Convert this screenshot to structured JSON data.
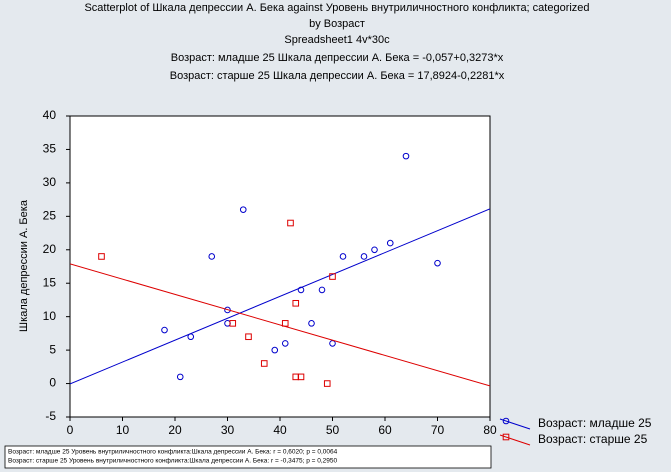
{
  "chart_data": {
    "type": "scatter",
    "title": [
      "Scatterplot of Шкала депрессии А. Бека against Уровень внутриличностного конфликта; categorized",
      "by Возраст"
    ],
    "subtitles": [
      "Spreadsheet1 4v*30c",
      "Возраст: младше 25 Шкала депрессии А. Бека = -0,057+0,3273*x",
      "Возраст: старше 25 Шкала депрессии А. Бека = 17,8924-0,2281*x"
    ],
    "y_label": "Шкала депрессии А. Бека",
    "xlim": [
      0,
      80
    ],
    "xticks": [
      0,
      10,
      20,
      30,
      40,
      50,
      60,
      70,
      80
    ],
    "ylim": [
      -5,
      40
    ],
    "yticks": [
      -5,
      0,
      5,
      10,
      15,
      20,
      25,
      30,
      35,
      40
    ],
    "legend": "right",
    "series": [
      {
        "name": "Возраст: младше 25",
        "color": "#0000cc",
        "marker": "circle",
        "fit": {
          "intercept": -0.057,
          "slope": 0.3273
        },
        "x": [
          18,
          21,
          23,
          27,
          30,
          30,
          33,
          39,
          41,
          44,
          46,
          48,
          50,
          52,
          56,
          58,
          61,
          64,
          70
        ],
        "values": [
          8,
          1,
          7,
          19,
          11,
          9,
          26,
          5,
          6,
          14,
          9,
          14,
          6,
          19,
          19,
          20,
          21,
          34,
          18
        ]
      },
      {
        "name": "Возраст: старше 25",
        "color": "#dd0000",
        "marker": "square",
        "fit": {
          "intercept": 17.8924,
          "slope": -0.2281
        },
        "x": [
          6,
          31,
          34,
          37,
          41,
          42,
          43,
          43,
          44,
          49,
          50
        ],
        "values": [
          19,
          9,
          7,
          3,
          9,
          24,
          1,
          12,
          1,
          0,
          16
        ]
      }
    ],
    "notes": [
      "Возраст: младше 25  Уровень внутриличностного конфликта:Шкала депрессии А. Бека:   r = 0,6020; p = 0,0064",
      "Возраст: старше 25  Уровень внутриличностного конфликта:Шкала депрессии А. Бека:   r = -0,3475; p = 0,2950"
    ]
  }
}
